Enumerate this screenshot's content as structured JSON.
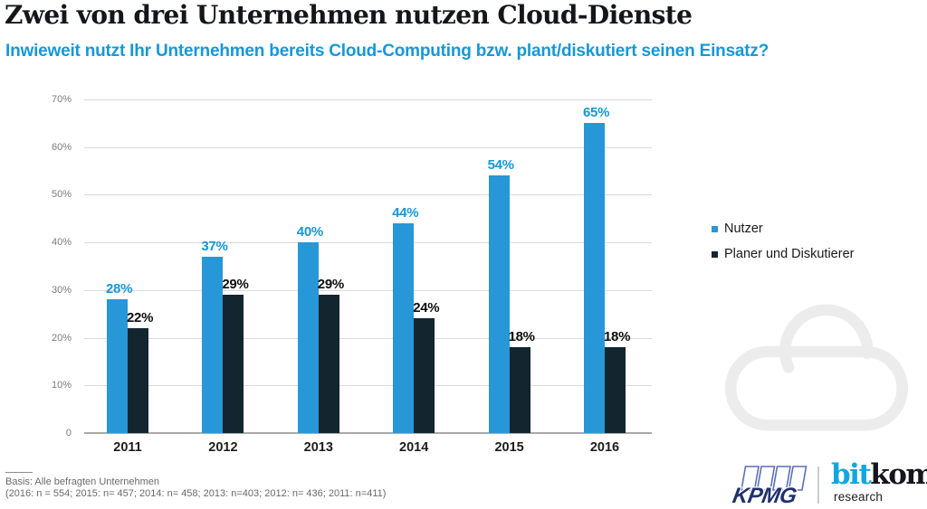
{
  "chart_data": {
    "type": "bar",
    "title": "Zwei von drei Unternehmen nutzen Cloud-Dienste",
    "subtitle": "Inwieweit nutzt Ihr Unternehmen bereits Cloud-Computing bzw. plant/diskutiert seinen Einsatz?",
    "categories": [
      "2011",
      "2012",
      "2013",
      "2014",
      "2015",
      "2016"
    ],
    "series": [
      {
        "name": "Nutzer",
        "color": "#2797d8",
        "label_color": "#1697d6",
        "values": [
          28,
          37,
          40,
          44,
          54,
          65
        ]
      },
      {
        "name": "Planer und Diskutierer",
        "color": "#13252f",
        "label_color": "#0e0e0e",
        "values": [
          22,
          29,
          29,
          24,
          18,
          18
        ]
      }
    ],
    "value_suffix": "%",
    "xlabel": "",
    "ylabel": "",
    "ylim": [
      0,
      70
    ],
    "yticks": [
      {
        "value": 0,
        "label": "0"
      },
      {
        "value": 10,
        "label": "10%"
      },
      {
        "value": 20,
        "label": "20%"
      },
      {
        "value": 30,
        "label": "30%"
      },
      {
        "value": 40,
        "label": "40%"
      },
      {
        "value": 50,
        "label": "50%"
      },
      {
        "value": 60,
        "label": "60%"
      },
      {
        "value": 70,
        "label": "70%"
      }
    ],
    "grid": true,
    "legend_position": "right"
  },
  "footer": {
    "basis": "Basis: Alle befragten Unternehmen",
    "sample_sizes": "(2016: n = 554; 2015: n= 457; 2014: n= 458; 2013: n=403; 2012: n= 436; 2011: n=411)"
  },
  "branding": {
    "kpmg": {
      "text": "KPMG"
    },
    "bitkom": {
      "bit": "bit",
      "kom": "kom",
      "sub": "research"
    }
  },
  "colors": {
    "accent_blue": "#1598d7",
    "bar_blue": "#2797d8",
    "bar_dark": "#13252f",
    "cloud_gray": "#ececec",
    "kpmg_blue": "#5d6fb5",
    "kpmg_navy": "#20306e",
    "bitkom_cyan": "#10a7e0",
    "bitkom_black": "#17161c"
  }
}
